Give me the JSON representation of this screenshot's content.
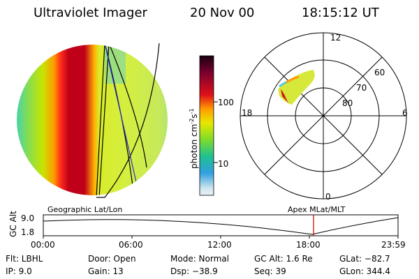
{
  "header": {
    "title": "Ultraviolet Imager",
    "date": "20 Nov 00",
    "time": "18:15:12 UT"
  },
  "colorbar": {
    "label": "photon cm",
    "exp1": "-2",
    "mid": "s",
    "exp2": "-1",
    "ticks": [
      "100",
      "10"
    ]
  },
  "polar": {
    "mlt_labels": [
      "12",
      "18",
      "6",
      "0"
    ],
    "lat_labels": [
      "60",
      "70",
      "80"
    ]
  },
  "orbit": {
    "left_title": "Geographic Lat/Lon",
    "right_title": "Apex MLat/MLT",
    "y_axis_label": "GC Alt",
    "y_ticks": [
      "9.0",
      "1.8"
    ],
    "x_ticks": [
      "00:00",
      "06:00",
      "12:00",
      "18:00",
      "23:59"
    ],
    "marker_time": "18:15"
  },
  "info": {
    "flt": "Flt: LBHL",
    "ip": "IP:  9.0",
    "door": "Door: Open",
    "gain": "Gain: 13",
    "mode": "Mode: Normal",
    "dsp": "Dsp:  −38.9",
    "gcalt": "GC Alt: 1.6 Re",
    "seq": "Seq: 39",
    "glat": "GLat: −82.7",
    "glon": "GLon: 344.4"
  },
  "colors": {
    "orbit_marker": "#cc0000",
    "track_blue": "#2a2ad0"
  }
}
